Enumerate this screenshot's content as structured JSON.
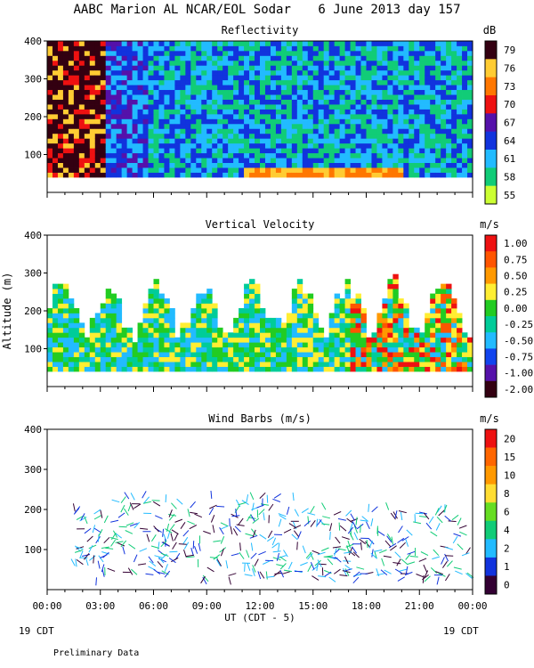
{
  "header": {
    "title": "AABC Marion AL NCAR/EOL Sodar",
    "date": "6 June 2013 day 157"
  },
  "footer": {
    "xlabel": "UT  (CDT - 5)",
    "left_date": "19 CDT",
    "right_date": "19 CDT",
    "note": "Preliminary Data"
  },
  "colors": {
    "scale9": [
      "#ccff33",
      "#66ee22",
      "#11cc77",
      "#22bbff",
      "#1188ee",
      "#1133dd",
      "#5511aa",
      "#ee1111",
      "#ff7700",
      "#ffcc33",
      "#330011"
    ]
  },
  "chart_data": [
    {
      "type": "heatmap",
      "title": "Reflectivity",
      "units": "dB",
      "x_ticks": [
        "00:00",
        "03:00",
        "06:00",
        "09:00",
        "12:00",
        "15:00",
        "18:00",
        "21:00",
        "00:00"
      ],
      "xlim": [
        0,
        24
      ],
      "ylim": [
        0,
        400
      ],
      "y_ticks": [
        "100",
        "200",
        "300",
        "400"
      ],
      "colorbar": [
        "79",
        "76",
        "73",
        "70",
        "67",
        "64",
        "61",
        "58",
        "55"
      ],
      "colorbar_colors": [
        "#330011",
        "#ffcc33",
        "#ff7700",
        "#ee1111",
        "#5511aa",
        "#1133dd",
        "#22bbff",
        "#11cc77",
        "#ccff33"
      ],
      "ylabel": ""
    },
    {
      "type": "heatmap",
      "title": "Vertical Velocity",
      "units": "m/s",
      "xlim": [
        0,
        24
      ],
      "ylim": [
        0,
        400
      ],
      "y_ticks": [
        "100",
        "200",
        "300",
        "400"
      ],
      "colorbar": [
        "1.00",
        "0.75",
        "0.50",
        "0.25",
        "0.00",
        "-0.25",
        "-0.50",
        "-0.75",
        "-1.00",
        "-2.00"
      ],
      "colorbar_colors": [
        "#ee1111",
        "#ff5500",
        "#ff9900",
        "#ffee33",
        "#22cc22",
        "#00cc99",
        "#22bbff",
        "#1144ee",
        "#5511aa",
        "#330011"
      ],
      "ylabel": "Altitude (m)"
    },
    {
      "type": "scatter",
      "title": "Wind Barbs (m/s)",
      "units": "m/s",
      "xlim": [
        0,
        24
      ],
      "ylim": [
        0,
        400
      ],
      "y_ticks": [
        "100",
        "200",
        "300",
        "400"
      ],
      "colorbar": [
        "20",
        "15",
        "10",
        "8",
        "6",
        "4",
        "2",
        "1",
        "0"
      ],
      "colorbar_colors": [
        "#ee1111",
        "#ff6600",
        "#ff9900",
        "#ffdd33",
        "#66dd22",
        "#11cc77",
        "#22bbff",
        "#1133dd",
        "#330033"
      ],
      "ylabel": ""
    }
  ]
}
